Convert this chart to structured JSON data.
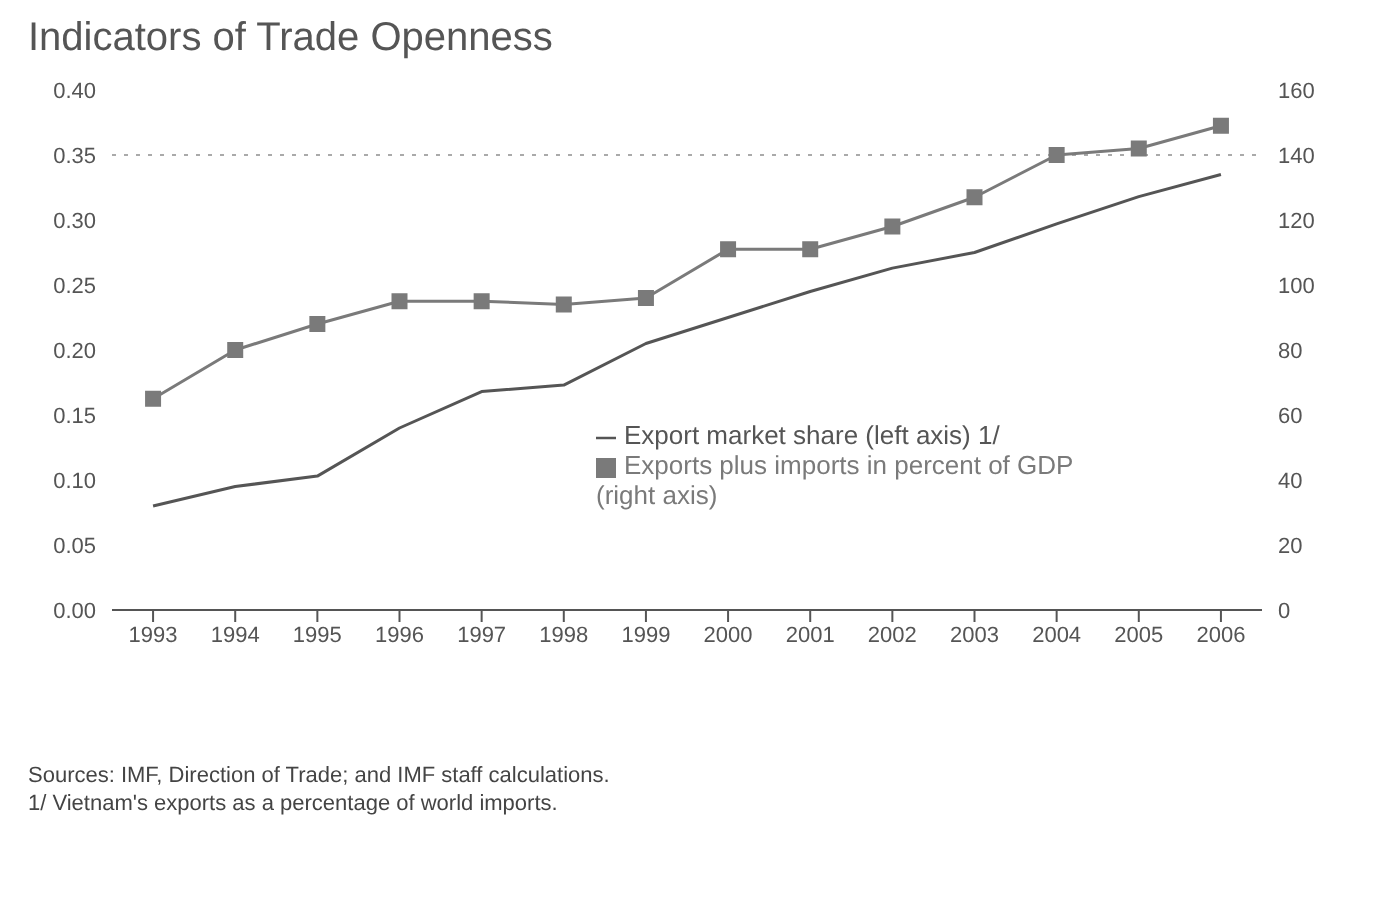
{
  "chart_data": {
    "type": "line",
    "title": "Indicators of Trade Openness",
    "categories": [
      "1993",
      "1994",
      "1995",
      "1996",
      "1997",
      "1998",
      "1999",
      "2000",
      "2001",
      "2002",
      "2003",
      "2004",
      "2005",
      "2006"
    ],
    "series": [
      {
        "name": "Export market share (left axis) 1/",
        "color": "#555555",
        "marker": "none",
        "values": [
          0.08,
          0.095,
          0.103,
          0.14,
          0.168,
          0.173,
          0.205,
          0.225,
          0.245,
          0.263,
          0.275,
          0.297,
          0.318,
          0.335
        ]
      },
      {
        "name": "Exports plus imports in percent of GDP (right axis)",
        "color": "#7a7a7a",
        "marker": "square",
        "axis": "y2",
        "values": [
          65,
          80,
          88,
          95,
          95,
          94,
          96,
          111,
          111,
          118,
          127,
          140,
          142,
          149
        ]
      }
    ],
    "ylim": [
      0,
      0.4
    ],
    "yticks": [
      {
        "value": 0,
        "label": "0.00"
      },
      {
        "value": 0.05,
        "label": "0.05"
      },
      {
        "value": 0.1,
        "label": "0.10"
      },
      {
        "value": 0.15,
        "label": "0.15"
      },
      {
        "value": 0.2,
        "label": "0.20"
      },
      {
        "value": 0.25,
        "label": "0.25"
      },
      {
        "value": 0.3,
        "label": "0.30"
      },
      {
        "value": 0.35,
        "label": "0.35"
      },
      {
        "value": 0.4,
        "label": "0.40"
      }
    ],
    "y2lim": [
      0,
      160
    ],
    "y2ticks": [
      0,
      20,
      40,
      60,
      80,
      100,
      120,
      140,
      160
    ],
    "ref_lines": [
      {
        "axis": "y",
        "value": 0.35,
        "color": "#aaaaaa",
        "line_style": "dotted"
      }
    ],
    "grid": false,
    "legend": "right",
    "annotations": [
      "Sources: IMF, Direction of Trade; and IMF staff calculations.",
      "1/ Vietnam's exports as a percentage of world imports."
    ]
  }
}
